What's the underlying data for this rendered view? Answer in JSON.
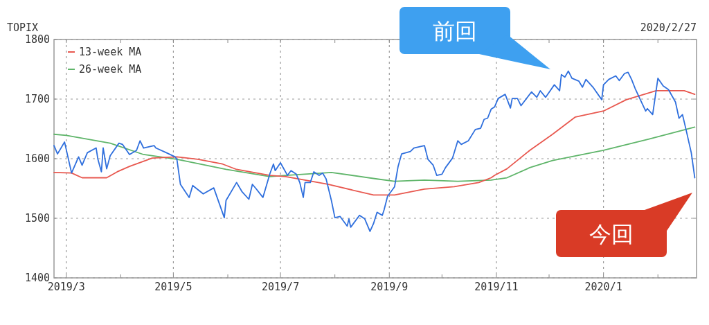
{
  "chart_data": {
    "type": "line",
    "ylabel": "TOPIX",
    "ylim": [
      1400,
      1800
    ],
    "yticks": [
      1400,
      1500,
      1600,
      1700,
      1800
    ],
    "xlim": [
      "2019-02-22",
      "2020-02-23"
    ],
    "xticks": [
      {
        "value": "2019-03-01",
        "label": "2019/3"
      },
      {
        "value": "2019-04-01",
        "label": null
      },
      {
        "value": "2019-05-01",
        "label": "2019/5"
      },
      {
        "value": "2019-06-01",
        "label": null
      },
      {
        "value": "2019-07-01",
        "label": "2019/7"
      },
      {
        "value": "2019-08-01",
        "label": null
      },
      {
        "value": "2019-09-01",
        "label": "2019/9"
      },
      {
        "value": "2019-10-01",
        "label": null
      },
      {
        "value": "2019-11-01",
        "label": "2019/11"
      },
      {
        "value": "2019-12-01",
        "label": null
      },
      {
        "value": "2020-01-01",
        "label": "2020/1"
      },
      {
        "value": "2020-02-01",
        "label": null
      }
    ],
    "grid": true,
    "legend": "top left",
    "line_style": "solid",
    "annotations": [
      "2020/2/27",
      "前回",
      "今回"
    ],
    "series": [
      {
        "color": "#2f6fdd",
        "x": [
          "2019-02-22",
          "2019-02-24",
          "2019-02-28",
          "2019-03-04",
          "2019-03-08",
          "2019-03-10",
          "2019-03-13",
          "2019-03-18",
          "2019-03-19",
          "2019-03-21",
          "2019-03-22",
          "2019-03-24",
          "2019-03-26",
          "2019-03-31",
          "2019-04-02",
          "2019-04-06",
          "2019-04-10",
          "2019-04-12",
          "2019-04-14",
          "2019-04-20",
          "2019-04-21",
          "2019-04-27",
          "2019-05-02",
          "2019-05-03",
          "2019-05-05",
          "2019-05-10",
          "2019-05-12",
          "2019-05-18",
          "2019-05-24",
          "2019-05-27",
          "2019-05-30",
          "2019-05-31",
          "2019-06-06",
          "2019-06-09",
          "2019-06-13",
          "2019-06-15",
          "2019-06-17",
          "2019-06-21",
          "2019-06-25",
          "2019-06-27",
          "2019-06-28",
          "2019-07-01",
          "2019-07-05",
          "2019-07-07",
          "2019-07-10",
          "2019-07-12",
          "2019-07-14",
          "2019-07-15",
          "2019-07-18",
          "2019-07-20",
          "2019-07-23",
          "2019-07-25",
          "2019-07-27",
          "2019-07-30",
          "2019-08-01",
          "2019-08-04",
          "2019-08-08",
          "2019-08-09",
          "2019-08-10",
          "2019-08-15",
          "2019-08-18",
          "2019-08-21",
          "2019-08-23",
          "2019-08-25",
          "2019-08-28",
          "2019-08-29",
          "2019-08-31",
          "2019-09-04",
          "2019-09-06",
          "2019-09-08",
          "2019-09-13",
          "2019-09-15",
          "2019-09-21",
          "2019-09-23",
          "2019-09-26",
          "2019-09-28",
          "2019-10-01",
          "2019-10-03",
          "2019-10-07",
          "2019-10-10",
          "2019-10-12",
          "2019-10-16",
          "2019-10-20",
          "2019-10-23",
          "2019-10-25",
          "2019-10-27",
          "2019-10-29",
          "2019-10-31",
          "2019-11-02",
          "2019-11-06",
          "2019-11-09",
          "2019-11-10",
          "2019-11-13",
          "2019-11-15",
          "2019-11-21",
          "2019-11-24",
          "2019-11-26",
          "2019-11-29",
          "2019-12-04",
          "2019-12-07",
          "2019-12-08",
          "2019-12-10",
          "2019-12-12",
          "2019-12-14",
          "2019-12-18",
          "2019-12-20",
          "2019-12-22",
          "2019-12-26",
          "2019-12-31",
          "2020-01-01",
          "2020-01-04",
          "2020-01-08",
          "2020-01-10",
          "2020-01-13",
          "2020-01-15",
          "2020-01-17",
          "2020-01-19",
          "2020-01-22",
          "2020-01-25",
          "2020-01-26",
          "2020-01-29",
          "2020-02-01",
          "2020-02-04",
          "2020-02-07",
          "2020-02-11",
          "2020-02-13",
          "2020-02-15",
          "2020-02-17",
          "2020-02-20",
          "2020-02-22"
        ],
        "values": [
          1622,
          1608,
          1628,
          1576,
          1603,
          1589,
          1610,
          1618,
          1599,
          1578,
          1618,
          1583,
          1605,
          1626,
          1624,
          1607,
          1614,
          1630,
          1618,
          1622,
          1618,
          1610,
          1603,
          1599,
          1557,
          1535,
          1555,
          1541,
          1551,
          1526,
          1501,
          1530,
          1560,
          1545,
          1532,
          1557,
          1550,
          1535,
          1575,
          1591,
          1580,
          1593,
          1572,
          1580,
          1574,
          1560,
          1535,
          1560,
          1560,
          1578,
          1572,
          1576,
          1566,
          1530,
          1501,
          1503,
          1487,
          1499,
          1485,
          1505,
          1499,
          1478,
          1491,
          1510,
          1505,
          1514,
          1537,
          1553,
          1587,
          1608,
          1612,
          1618,
          1622,
          1599,
          1589,
          1572,
          1574,
          1585,
          1601,
          1630,
          1624,
          1630,
          1649,
          1651,
          1666,
          1668,
          1683,
          1687,
          1701,
          1708,
          1685,
          1701,
          1701,
          1689,
          1712,
          1703,
          1714,
          1703,
          1724,
          1714,
          1741,
          1737,
          1747,
          1735,
          1730,
          1720,
          1733,
          1720,
          1699,
          1724,
          1733,
          1739,
          1731,
          1743,
          1745,
          1733,
          1718,
          1699,
          1680,
          1684,
          1674,
          1735,
          1722,
          1716,
          1695,
          1668,
          1674,
          1649,
          1610,
          1568
        ]
      },
      {
        "name": "13-week MA",
        "color": "#e8584f",
        "x": [
          "2019-02-22",
          "2019-03-04",
          "2019-03-10",
          "2019-03-24",
          "2019-03-30",
          "2019-04-06",
          "2019-04-19",
          "2019-05-03",
          "2019-05-15",
          "2019-05-29",
          "2019-06-06",
          "2019-06-25",
          "2019-07-04",
          "2019-07-28",
          "2019-08-23",
          "2019-09-04",
          "2019-09-21",
          "2019-10-08",
          "2019-10-22",
          "2019-10-29",
          "2019-10-31",
          "2019-11-07",
          "2019-11-20",
          "2019-12-03",
          "2019-12-16",
          "2020-01-01",
          "2020-01-14",
          "2020-01-31",
          "2020-02-16",
          "2020-02-22"
        ],
        "values": [
          1577,
          1576,
          1568,
          1568,
          1578,
          1587,
          1601,
          1603,
          1599,
          1591,
          1582,
          1572,
          1570,
          1557,
          1539,
          1539,
          1549,
          1553,
          1560,
          1568,
          1572,
          1583,
          1614,
          1641,
          1670,
          1680,
          1699,
          1714,
          1714,
          1708
        ]
      },
      {
        "name": "26-week MA",
        "color": "#5fb56a",
        "x": [
          "2019-02-22",
          "2019-03-01",
          "2019-03-26",
          "2019-04-14",
          "2019-05-03",
          "2019-05-31",
          "2019-06-25",
          "2019-07-04",
          "2019-07-30",
          "2019-08-25",
          "2019-09-04",
          "2019-09-21",
          "2019-10-10",
          "2019-10-29",
          "2019-10-31",
          "2019-11-07",
          "2019-11-20",
          "2019-12-03",
          "2020-01-01",
          "2020-01-27",
          "2020-02-22"
        ],
        "values": [
          1641,
          1639,
          1626,
          1607,
          1599,
          1582,
          1570,
          1572,
          1577,
          1566,
          1562,
          1564,
          1562,
          1564,
          1565,
          1568,
          1585,
          1597,
          1614,
          1633,
          1653
        ]
      }
    ]
  }
}
